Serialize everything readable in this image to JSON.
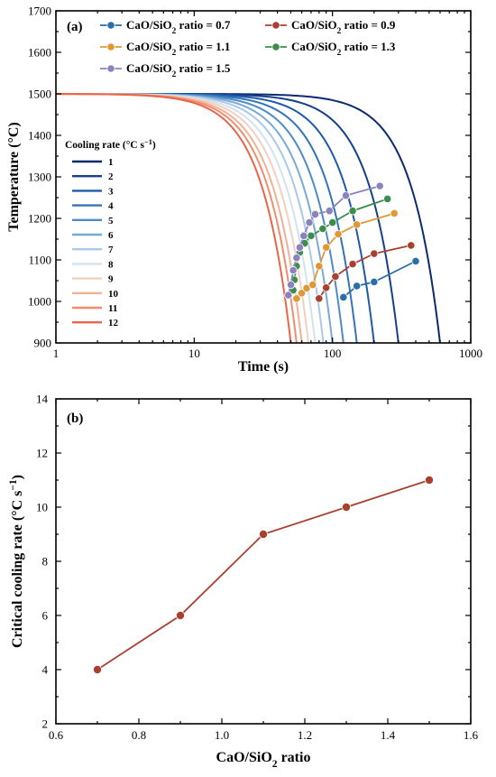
{
  "chart_data": [
    {
      "panel": "(a)",
      "type": "line",
      "xlabel": "Time (s)",
      "ylabel": "Temperature (°C)",
      "xscale": "log",
      "xlim": [
        1,
        1000
      ],
      "ylim": [
        900,
        1700
      ],
      "xticks": [
        1,
        10,
        100,
        1000
      ],
      "yticks": [
        900,
        1000,
        1100,
        1200,
        1300,
        1400,
        1500,
        1600,
        1700
      ],
      "legend_title": "Cooling rate (°C s⁻¹)",
      "cooling_rates": [
        "1",
        "2",
        "3",
        "4",
        "5",
        "6",
        "7",
        "8",
        "9",
        "10",
        "11",
        "12"
      ],
      "cooling_curve_colors": [
        "#0b2a6f",
        "#143f8c",
        "#1f5aa8",
        "#3373b8",
        "#4d8bc6",
        "#79a9d4",
        "#a9c9e6",
        "#d2e2f0",
        "#f2d0bf",
        "#f2b197",
        "#ef8d6c",
        "#e8654a"
      ],
      "cooling_curve_end_times": [
        600,
        300,
        200,
        150,
        120,
        100,
        86,
        75,
        67,
        60,
        55,
        50
      ],
      "series": [
        {
          "name": "CaO/SiO2 ratio = 0.7",
          "color": "#2a6fa8",
          "points": [
            [
              120,
              1010
            ],
            [
              150,
              1037
            ],
            [
              200,
              1047
            ],
            [
              400,
              1097
            ]
          ]
        },
        {
          "name": "CaO/SiO2 ratio = 0.9",
          "color": "#a8402f",
          "points": [
            [
              80,
              1007
            ],
            [
              90,
              1033
            ],
            [
              105,
              1060
            ],
            [
              140,
              1090
            ],
            [
              200,
              1115
            ],
            [
              370,
              1135
            ]
          ]
        },
        {
          "name": "CaO/SiO2 ratio = 1.1",
          "color": "#e09836",
          "points": [
            [
              55,
              1007
            ],
            [
              60,
              1020
            ],
            [
              65,
              1032
            ],
            [
              72,
              1040
            ],
            [
              80,
              1085
            ],
            [
              90,
              1130
            ],
            [
              110,
              1162
            ],
            [
              150,
              1185
            ],
            [
              280,
              1212
            ]
          ]
        },
        {
          "name": "CaO/SiO2 ratio = 1.3",
          "color": "#3c8c4e",
          "points": [
            [
              52,
              1027
            ],
            [
              53,
              1052
            ],
            [
              55,
              1085
            ],
            [
              58,
              1118
            ],
            [
              63,
              1140
            ],
            [
              70,
              1158
            ],
            [
              85,
              1175
            ],
            [
              100,
              1190
            ],
            [
              140,
              1218
            ],
            [
              250,
              1247
            ]
          ]
        },
        {
          "name": "CaO/SiO2 ratio = 1.5",
          "color": "#8b83be",
          "points": [
            [
              48,
              1015
            ],
            [
              50,
              1040
            ],
            [
              52,
              1075
            ],
            [
              55,
              1105
            ],
            [
              58,
              1130
            ],
            [
              62,
              1158
            ],
            [
              68,
              1190
            ],
            [
              75,
              1210
            ],
            [
              95,
              1218
            ],
            [
              125,
              1255
            ],
            [
              220,
              1278
            ]
          ]
        }
      ]
    },
    {
      "panel": "(b)",
      "type": "line",
      "xlabel": "CaO/SiO₂ ratio",
      "ylabel": "Critical cooling rate (°C s⁻¹)",
      "xlim": [
        0.6,
        1.6
      ],
      "ylim": [
        2,
        14
      ],
      "xticks": [
        0.6,
        0.8,
        1.0,
        1.2,
        1.4,
        1.6
      ],
      "yticks": [
        2,
        4,
        6,
        8,
        10,
        12,
        14
      ],
      "color": "#a8402f",
      "x": [
        0.7,
        0.9,
        1.1,
        1.3,
        1.5
      ],
      "y": [
        4,
        6,
        9,
        10,
        11
      ]
    }
  ]
}
